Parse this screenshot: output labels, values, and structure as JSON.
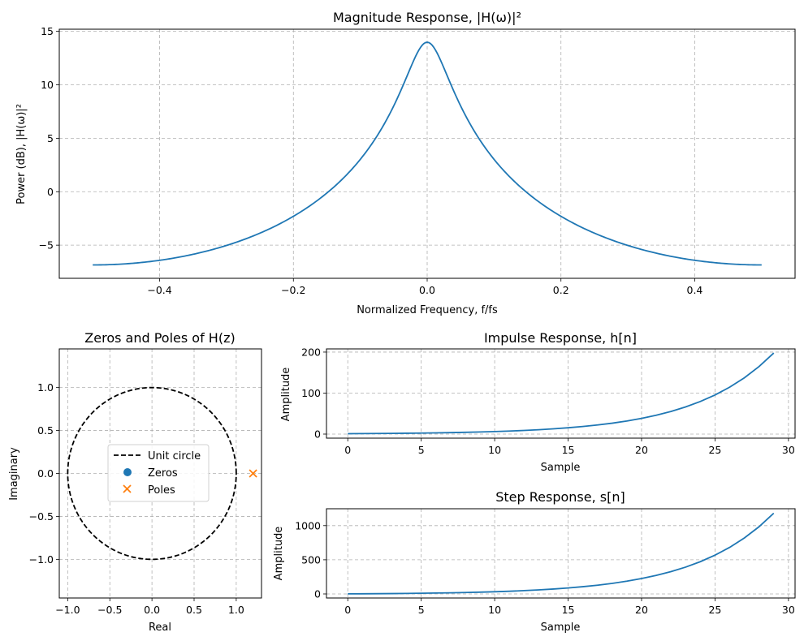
{
  "colors": {
    "line": "#1f77b4",
    "pole": "#ff7f0e",
    "zero": "#1f77b4",
    "circle": "#000000"
  },
  "chart_data": [
    {
      "id": "magnitude",
      "type": "line",
      "title": "Magnitude Response, |H(ω)|²",
      "xlabel": "Normalized Frequency, f/fs",
      "ylabel": "Power (dB), |H(ω)|²",
      "xlim": [
        -0.55,
        0.55
      ],
      "ylim": [
        -8.1,
        15.2
      ],
      "xticks": [
        -0.4,
        -0.2,
        0.0,
        0.2,
        0.4
      ],
      "xtick_labels": [
        "−0.4",
        "−0.2",
        "0.0",
        "0.2",
        "0.4"
      ],
      "yticks": [
        -5,
        0,
        5,
        10,
        15
      ],
      "ytick_labels": [
        "−5",
        "0",
        "5",
        "10",
        "15"
      ],
      "grid": true,
      "series": [
        {
          "pole": 1.2,
          "x_range": [
            -0.5,
            0.5
          ]
        }
      ]
    },
    {
      "id": "pz",
      "type": "scatter",
      "title": "Zeros and Poles of H(z)",
      "xlabel": "Real",
      "ylabel": "Imaginary",
      "xlim": [
        -1.1,
        1.3
      ],
      "ylim": [
        -1.45,
        1.45
      ],
      "xticks": [
        -1.0,
        -0.5,
        0.0,
        0.5,
        1.0
      ],
      "xtick_labels": [
        "−1.0",
        "−0.5",
        "0.0",
        "0.5",
        "1.0"
      ],
      "yticks": [
        -1.0,
        -0.5,
        0.0,
        0.5,
        1.0
      ],
      "ytick_labels": [
        "−1.0",
        "−0.5",
        "0.0",
        "0.5",
        "1.0"
      ],
      "grid": true,
      "legend": [
        "Unit circle",
        "Zeros",
        "Poles"
      ],
      "zeros": [],
      "poles": [
        {
          "re": 1.2,
          "im": 0.0
        }
      ]
    },
    {
      "id": "impulse",
      "type": "line",
      "title": "Impulse Response, h[n]",
      "xlabel": "Sample",
      "ylabel": "Amplitude",
      "xlim": [
        -1.45,
        30.45
      ],
      "ylim": [
        -9.9,
        207.8
      ],
      "xticks": [
        0,
        5,
        10,
        15,
        20,
        25,
        30
      ],
      "xtick_labels": [
        "0",
        "5",
        "10",
        "15",
        "20",
        "25",
        "30"
      ],
      "yticks": [
        0,
        100,
        200
      ],
      "ytick_labels": [
        "0",
        "100",
        "200"
      ],
      "grid": true,
      "series": [
        {
          "n": [
            0,
            29
          ],
          "base": 1.2
        }
      ]
    },
    {
      "id": "step",
      "type": "line",
      "title": "Step Response, s[n]",
      "xlabel": "Sample",
      "ylabel": "Amplitude",
      "xlim": [
        -1.45,
        30.45
      ],
      "ylim": [
        -59.4,
        1246.9
      ],
      "xticks": [
        0,
        5,
        10,
        15,
        20,
        25,
        30
      ],
      "xtick_labels": [
        "0",
        "5",
        "10",
        "15",
        "20",
        "25",
        "30"
      ],
      "yticks": [
        0,
        500,
        1000
      ],
      "ytick_labels": [
        "0",
        "500",
        "1000"
      ],
      "grid": true,
      "series": [
        {
          "n": [
            0,
            29
          ],
          "base": 1.2
        }
      ]
    }
  ]
}
